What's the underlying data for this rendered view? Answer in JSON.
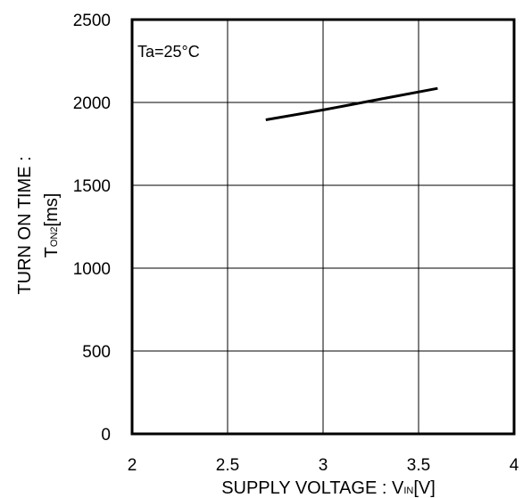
{
  "chart_data": {
    "type": "line",
    "ylabel_line1": "TURN ON TIME :",
    "ylabel_line2": {
      "main": "T",
      "sub": "ON2",
      "unit": "[ms]"
    },
    "xlabel": {
      "main": "SUPPLY VOLTAGE : V",
      "sub": "IN",
      "unit": "[V]"
    },
    "annotation": "Ta=25°C",
    "xlim": [
      2,
      4
    ],
    "ylim": [
      0,
      2500
    ],
    "x_ticks": [
      2,
      2.5,
      3,
      3.5,
      4
    ],
    "x_tick_labels": [
      "2",
      "2.5",
      "3",
      "3.5",
      "4"
    ],
    "y_ticks": [
      0,
      500,
      1000,
      1500,
      2000,
      2500
    ],
    "y_tick_labels": [
      "0",
      "500",
      "1000",
      "1500",
      "2000",
      "2500"
    ],
    "grid": true,
    "series": [
      {
        "x": [
          2.7,
          3.0,
          3.3,
          3.6
        ],
        "y": [
          1895,
          1955,
          2020,
          2085
        ],
        "color": "#000000"
      }
    ]
  }
}
